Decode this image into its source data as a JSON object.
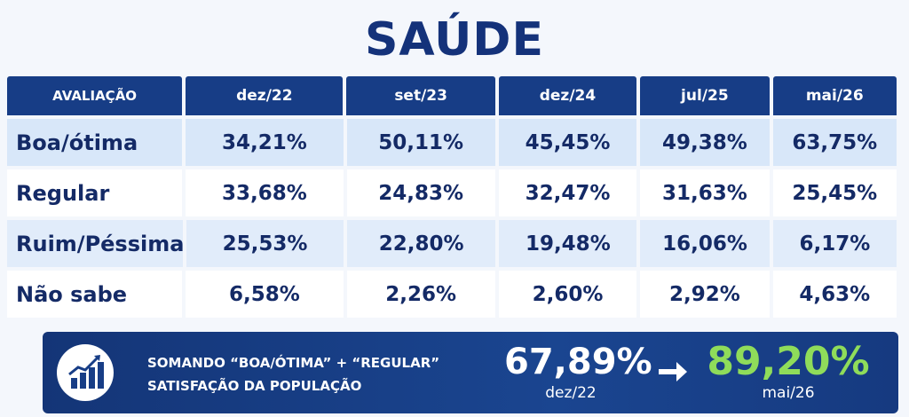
{
  "title": "SAÚDE",
  "table": {
    "headers": [
      "AVALIAÇÃO",
      "dez/22",
      "set/23",
      "dez/24",
      "jul/25",
      "mai/26"
    ],
    "rows": [
      [
        "Boa/ótima",
        "34,21%",
        "50,11%",
        "45,45%",
        "49,38%",
        "63,75%"
      ],
      [
        "Regular",
        "33,68%",
        "24,83%",
        "32,47%",
        "31,63%",
        "25,45%"
      ],
      [
        "Ruim/Péssima",
        "25,53%",
        "22,80%",
        "19,48%",
        "16,06%",
        "6,17%"
      ],
      [
        "Não sabe",
        "6,58%",
        "2,26%",
        "2,60%",
        "2,92%",
        "4,63%"
      ]
    ]
  },
  "summary": {
    "icon": "growth-chart-icon",
    "line1": "SOMANDO “BOA/ÓTIMA” + “REGULAR”",
    "line2": "SATISFAÇÃO DA POPULAÇÃO",
    "old_value": "67,89%",
    "old_date": "dez/22",
    "new_value": "89,20%",
    "new_date": "mai/26",
    "arrow_icon": "right-arrow-icon",
    "colors": {
      "navy": "#14327a",
      "highlight_green": "#8fdc5a"
    }
  }
}
